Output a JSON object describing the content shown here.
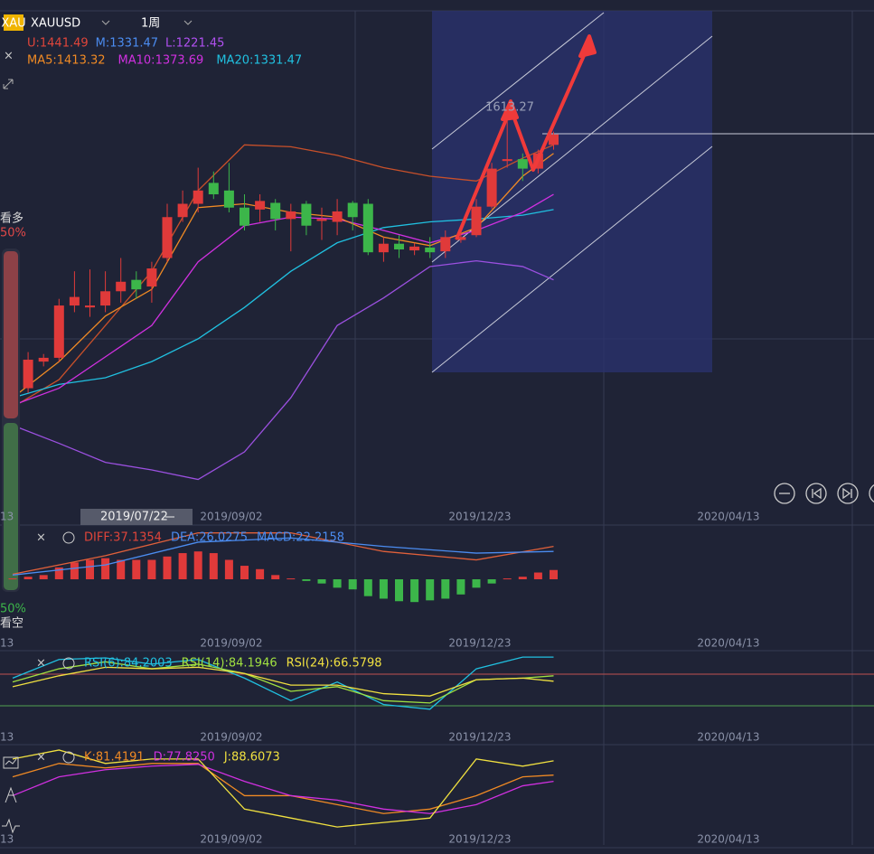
{
  "header": {
    "logo": "XAU",
    "symbol": "XAUUSD",
    "period": "1周"
  },
  "legend": {
    "bands": [
      "U:1441.49",
      "M:1331.47",
      "L:1221.45"
    ],
    "bands_colors": [
      "#e0453a",
      "#4b8cf0",
      "#b050f0"
    ],
    "ma": [
      "MA5:1413.32",
      "MA10:1373.69",
      "MA20:1331.47"
    ],
    "ma_colors": [
      "#f08a24",
      "#d030e0",
      "#20c0e0"
    ]
  },
  "side": {
    "bull": "看多",
    "bull_pct": "50%",
    "bear_pct": "50%",
    "bear": "看空"
  },
  "high_label": "1613.27",
  "dates": [
    "2019/09/02",
    "2019/12/23",
    "2020/04/13"
  ],
  "edge_date": "13",
  "cursor_date": "2019/07/22",
  "up_color": "#e03a3a",
  "down_color": "#3cb64a",
  "main": {
    "ylim": [
      1198,
      1719
    ],
    "candles": [
      [
        1303,
        1331,
        1293,
        1322
      ],
      [
        1322,
        1360,
        1317,
        1352
      ],
      [
        1350,
        1358,
        1345,
        1354
      ],
      [
        1354,
        1416,
        1350,
        1409
      ],
      [
        1409,
        1445,
        1402,
        1418
      ],
      [
        1407,
        1447,
        1397,
        1409
      ],
      [
        1409,
        1445,
        1402,
        1424
      ],
      [
        1424,
        1459,
        1412,
        1434
      ],
      [
        1436,
        1445,
        1416,
        1426
      ],
      [
        1429,
        1455,
        1412,
        1448
      ],
      [
        1459,
        1516,
        1455,
        1502
      ],
      [
        1502,
        1530,
        1497,
        1516
      ],
      [
        1516,
        1554,
        1507,
        1530
      ],
      [
        1538,
        1550,
        1521,
        1526
      ],
      [
        1530,
        1559,
        1507,
        1512
      ],
      [
        1512,
        1526,
        1488,
        1493
      ],
      [
        1510,
        1526,
        1497,
        1519
      ],
      [
        1517,
        1521,
        1488,
        1500
      ],
      [
        1500,
        1516,
        1466,
        1508
      ],
      [
        1516,
        1519,
        1483,
        1493
      ],
      [
        1498,
        1512,
        1478,
        1500
      ],
      [
        1497,
        1521,
        1483,
        1508
      ],
      [
        1517,
        1519,
        1488,
        1502
      ],
      [
        1516,
        1521,
        1462,
        1465
      ],
      [
        1465,
        1481,
        1455,
        1474
      ],
      [
        1474,
        1483,
        1459,
        1468
      ],
      [
        1467,
        1475,
        1462,
        1471
      ],
      [
        1470,
        1481,
        1459,
        1465
      ],
      [
        1466,
        1488,
        1459,
        1481
      ],
      [
        1478,
        1488,
        1475,
        1481
      ],
      [
        1483,
        1521,
        1481,
        1513
      ],
      [
        1513,
        1559,
        1511,
        1553
      ],
      [
        1561,
        1613.27,
        1554,
        1563
      ],
      [
        1563,
        1569,
        1540,
        1553
      ],
      [
        1553,
        1573,
        1548,
        1569
      ],
      [
        1578,
        1592,
        1573,
        1589
      ]
    ],
    "line_x": [
      0,
      3,
      6,
      9,
      12,
      15,
      18,
      21,
      24,
      27,
      30,
      33,
      35
    ],
    "lines": [
      {
        "color": "#c8502a",
        "values": [
          1302,
          1331,
          1388,
          1445,
          1530,
          1578,
          1576,
          1567,
          1554,
          1545,
          1540,
          1564,
          1578
        ]
      },
      {
        "color": "#9b50e0",
        "values": [
          1283,
          1264,
          1244,
          1236,
          1226,
          1255,
          1312,
          1388,
          1417,
          1450,
          1456,
          1450,
          1436
        ]
      },
      {
        "color": "#20c0e0",
        "values": [
          1312,
          1326,
          1333,
          1350,
          1374,
          1407,
          1445,
          1475,
          1491,
          1497,
          1500,
          1504,
          1510
        ]
      },
      {
        "color": "#d030e0",
        "values": [
          1304,
          1322,
          1355,
          1388,
          1455,
          1493,
          1502,
          1500,
          1488,
          1475,
          1488,
          1507,
          1526
        ]
      },
      {
        "color": "#f08a24",
        "values": [
          1312,
          1350,
          1398,
          1426,
          1512,
          1516,
          1507,
          1502,
          1481,
          1472,
          1491,
          1545,
          1569
        ]
      }
    ]
  },
  "macd": {
    "ylim": [
      -60,
      60
    ],
    "legend": [
      "DIFF:37.1354",
      "DEA:26.0275",
      "MACD:22.2158"
    ],
    "legend_colors": [
      "#e0453a",
      "#4b8cf0",
      "#4b8cf0"
    ],
    "bars": [
      1,
      3,
      5,
      14,
      20,
      23,
      25,
      23,
      23,
      23,
      27,
      31,
      33,
      31,
      23,
      16,
      12,
      5,
      1,
      -2,
      -5,
      -10,
      -12,
      -20,
      -23,
      -26,
      -27,
      -25,
      -23,
      -18,
      -10,
      -5,
      1,
      3,
      8,
      11
    ],
    "line_x": [
      0,
      6,
      12,
      18,
      24,
      30,
      35
    ],
    "lines": [
      {
        "color": "#e0603a",
        "values": [
          6,
          28,
          55,
          55,
          33,
          23,
          39
        ]
      },
      {
        "color": "#4b8cf0",
        "values": [
          5,
          17,
          44,
          49,
          39,
          31,
          33
        ]
      }
    ]
  },
  "rsi": {
    "ylim": [
      0,
      100
    ],
    "legend": [
      "RSI(6):84.2003",
      "RSI(14):84.1946",
      "RSI(24):66.5798"
    ],
    "legend_colors": [
      "#20c0e0",
      "#a0e040",
      "#f0e040"
    ],
    "line_x": [
      0,
      3,
      6,
      9,
      12,
      15,
      18,
      21,
      24,
      27,
      30,
      33,
      35
    ],
    "lines": [
      {
        "color": "#20c0e0",
        "values": [
          67,
          91,
          93,
          85,
          91,
          67,
          38,
          62,
          33,
          27,
          79,
          94,
          94
        ]
      },
      {
        "color": "#a0e040",
        "values": [
          62,
          79,
          88,
          79,
          85,
          73,
          50,
          56,
          38,
          35,
          65,
          67,
          70
        ]
      },
      {
        "color": "#f0e040",
        "values": [
          56,
          70,
          81,
          79,
          81,
          73,
          58,
          58,
          47,
          44,
          65,
          67,
          63
        ]
      }
    ]
  },
  "kdj": {
    "ylim": [
      0,
      100
    ],
    "legend": [
      "K:81.4191",
      "D:77.8250",
      "J:88.6073"
    ],
    "legend_colors": [
      "#f08a24",
      "#d030e0",
      "#f0e040"
    ],
    "line_x": [
      0,
      3,
      6,
      9,
      12,
      15,
      18,
      21,
      24,
      27,
      30,
      33,
      35
    ],
    "lines": [
      {
        "color": "#f08a24",
        "values": [
          66,
          81,
          76,
          81,
          81,
          45,
          45,
          35,
          25,
          30,
          45,
          66,
          68
        ]
      },
      {
        "color": "#d030e0",
        "values": [
          45,
          66,
          74,
          78,
          80,
          61,
          45,
          40,
          30,
          25,
          35,
          56,
          61
        ]
      },
      {
        "color": "#f0e040",
        "values": [
          86,
          96,
          81,
          86,
          86,
          30,
          20,
          10,
          15,
          20,
          86,
          78,
          84
        ]
      }
    ]
  }
}
